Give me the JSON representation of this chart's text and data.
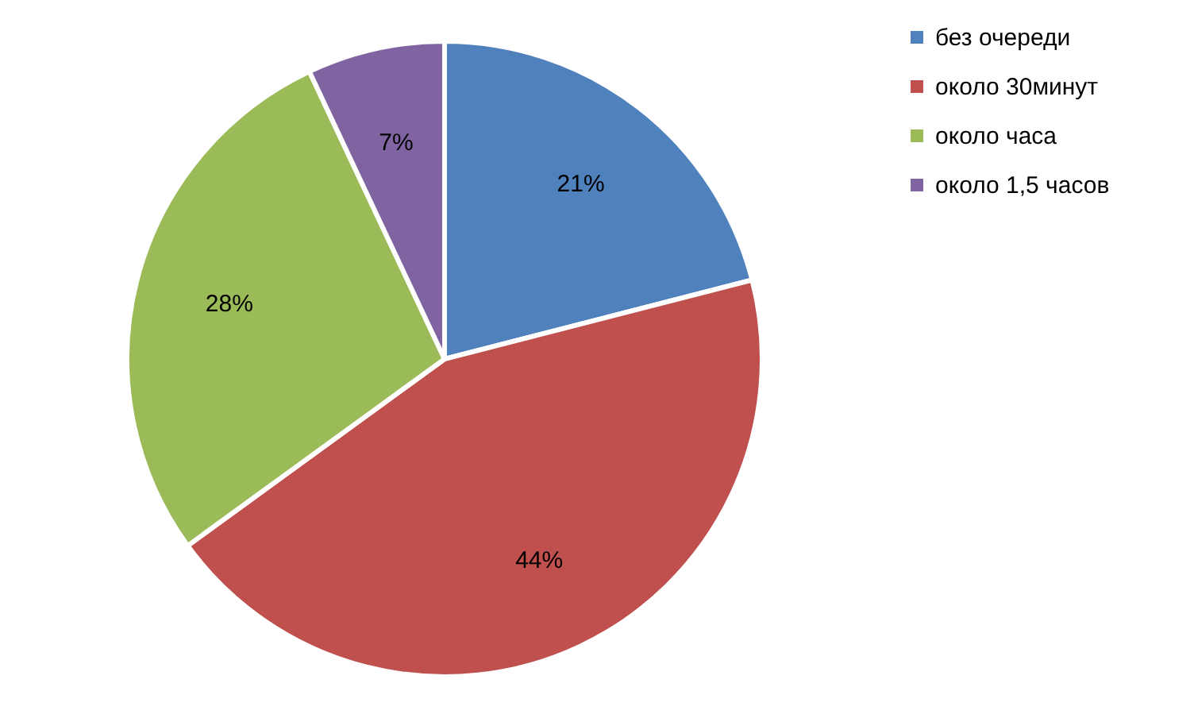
{
  "chart_data": {
    "type": "pie",
    "categories": [
      "без очереди",
      "около 30минут",
      "около часа",
      "около 1,5 часов"
    ],
    "values": [
      21,
      44,
      28,
      7
    ],
    "colors": [
      "#4f81bd",
      "#c0504d",
      "#9bbb59",
      "#8064a2"
    ],
    "value_labels": [
      "21%",
      "44%",
      "28%",
      "7%"
    ],
    "legend": "right"
  }
}
